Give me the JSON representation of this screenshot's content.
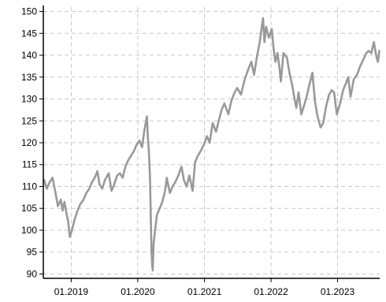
{
  "chart_data": {
    "type": "line",
    "title": "",
    "xlabel": "",
    "ylabel": "",
    "x_range": [
      "2018-08-01",
      "2023-08-20"
    ],
    "ylim": [
      89,
      151
    ],
    "grid": true,
    "grid_style": "dashed",
    "legend": "none",
    "x_ticks": [
      {
        "date": "2019-01-01",
        "label": "01.2019"
      },
      {
        "date": "2020-01-01",
        "label": "01.2020"
      },
      {
        "date": "2021-01-01",
        "label": "01.2021"
      },
      {
        "date": "2022-01-01",
        "label": "01.2022"
      },
      {
        "date": "2023-01-01",
        "label": "01.2023"
      }
    ],
    "y_ticks": [
      {
        "value": 90,
        "label": "90"
      },
      {
        "value": 95,
        "label": "95"
      },
      {
        "value": 100,
        "label": "100"
      },
      {
        "value": 105,
        "label": "105"
      },
      {
        "value": 110,
        "label": "110"
      },
      {
        "value": 115,
        "label": "115"
      },
      {
        "value": 120,
        "label": "120"
      },
      {
        "value": 125,
        "label": "125"
      },
      {
        "value": 130,
        "label": "130"
      },
      {
        "value": 135,
        "label": "135"
      },
      {
        "value": 140,
        "label": "140"
      },
      {
        "value": 145,
        "label": "145"
      },
      {
        "value": 150,
        "label": "150"
      }
    ],
    "series": [
      {
        "color": "#999999",
        "points": [
          [
            "2018-08-05",
            111.5
          ],
          [
            "2018-08-20",
            109.5
          ],
          [
            "2018-09-05",
            111.0
          ],
          [
            "2018-09-20",
            112.0
          ],
          [
            "2018-10-05",
            109.0
          ],
          [
            "2018-10-20",
            105.5
          ],
          [
            "2018-11-05",
            107.0
          ],
          [
            "2018-11-15",
            104.5
          ],
          [
            "2018-11-25",
            106.5
          ],
          [
            "2018-12-05",
            104.0
          ],
          [
            "2018-12-15",
            102.0
          ],
          [
            "2018-12-24",
            98.5
          ],
          [
            "2019-01-05",
            100.0
          ],
          [
            "2019-01-20",
            102.5
          ],
          [
            "2019-02-05",
            104.5
          ],
          [
            "2019-02-20",
            106.0
          ],
          [
            "2019-03-10",
            107.0
          ],
          [
            "2019-03-25",
            108.5
          ],
          [
            "2019-04-10",
            109.5
          ],
          [
            "2019-04-25",
            111.0
          ],
          [
            "2019-05-10",
            112.0
          ],
          [
            "2019-05-25",
            113.5
          ],
          [
            "2019-06-05",
            110.5
          ],
          [
            "2019-06-20",
            109.5
          ],
          [
            "2019-07-05",
            111.5
          ],
          [
            "2019-07-25",
            113.0
          ],
          [
            "2019-08-10",
            109.0
          ],
          [
            "2019-08-25",
            110.5
          ],
          [
            "2019-09-10",
            112.5
          ],
          [
            "2019-09-25",
            113.0
          ],
          [
            "2019-10-10",
            112.0
          ],
          [
            "2019-10-25",
            114.5
          ],
          [
            "2019-11-10",
            116.0
          ],
          [
            "2019-11-25",
            117.0
          ],
          [
            "2019-12-10",
            118.0
          ],
          [
            "2019-12-25",
            119.5
          ],
          [
            "2020-01-10",
            120.5
          ],
          [
            "2020-01-25",
            119.0
          ],
          [
            "2020-02-05",
            122.5
          ],
          [
            "2020-02-20",
            126.0
          ],
          [
            "2020-02-26",
            121.0
          ],
          [
            "2020-03-02",
            118.0
          ],
          [
            "2020-03-08",
            112.0
          ],
          [
            "2020-03-12",
            104.0
          ],
          [
            "2020-03-16",
            96.0
          ],
          [
            "2020-03-20",
            92.0
          ],
          [
            "2020-03-23",
            90.8
          ],
          [
            "2020-03-28",
            97.0
          ],
          [
            "2020-04-05",
            100.0
          ],
          [
            "2020-04-15",
            103.5
          ],
          [
            "2020-04-30",
            105.0
          ],
          [
            "2020-05-15",
            106.5
          ],
          [
            "2020-05-30",
            109.0
          ],
          [
            "2020-06-08",
            112.0
          ],
          [
            "2020-06-25",
            108.5
          ],
          [
            "2020-07-10",
            110.0
          ],
          [
            "2020-07-25",
            111.0
          ],
          [
            "2020-08-10",
            112.5
          ],
          [
            "2020-08-28",
            114.5
          ],
          [
            "2020-09-10",
            111.5
          ],
          [
            "2020-09-25",
            110.0
          ],
          [
            "2020-10-10",
            112.5
          ],
          [
            "2020-10-28",
            109.0
          ],
          [
            "2020-11-10",
            115.5
          ],
          [
            "2020-11-25",
            117.0
          ],
          [
            "2020-12-10",
            118.0
          ],
          [
            "2020-12-28",
            119.5
          ],
          [
            "2021-01-15",
            121.5
          ],
          [
            "2021-01-29",
            120.0
          ],
          [
            "2021-02-15",
            124.5
          ],
          [
            "2021-03-05",
            122.5
          ],
          [
            "2021-03-20",
            125.0
          ],
          [
            "2021-04-05",
            127.5
          ],
          [
            "2021-04-20",
            129.0
          ],
          [
            "2021-05-12",
            126.5
          ],
          [
            "2021-05-28",
            129.5
          ],
          [
            "2021-06-15",
            131.5
          ],
          [
            "2021-06-30",
            132.5
          ],
          [
            "2021-07-20",
            131.0
          ],
          [
            "2021-08-10",
            134.5
          ],
          [
            "2021-08-31",
            137.0
          ],
          [
            "2021-09-15",
            138.5
          ],
          [
            "2021-09-30",
            135.5
          ],
          [
            "2021-10-15",
            139.5
          ],
          [
            "2021-10-31",
            143.0
          ],
          [
            "2021-11-10",
            146.0
          ],
          [
            "2021-11-18",
            148.5
          ],
          [
            "2021-11-26",
            143.0
          ],
          [
            "2021-12-05",
            146.5
          ],
          [
            "2021-12-20",
            144.0
          ],
          [
            "2022-01-05",
            146.0
          ],
          [
            "2022-01-15",
            141.5
          ],
          [
            "2022-01-25",
            138.5
          ],
          [
            "2022-02-05",
            140.5
          ],
          [
            "2022-02-15",
            137.5
          ],
          [
            "2022-02-24",
            134.0
          ],
          [
            "2022-03-10",
            140.5
          ],
          [
            "2022-03-29",
            139.5
          ],
          [
            "2022-04-12",
            136.0
          ],
          [
            "2022-04-28",
            133.0
          ],
          [
            "2022-05-10",
            130.0
          ],
          [
            "2022-05-20",
            128.0
          ],
          [
            "2022-06-01",
            131.5
          ],
          [
            "2022-06-16",
            126.5
          ],
          [
            "2022-07-01",
            128.5
          ],
          [
            "2022-07-15",
            130.5
          ],
          [
            "2022-07-29",
            133.0
          ],
          [
            "2022-08-16",
            136.0
          ],
          [
            "2022-08-30",
            129.5
          ],
          [
            "2022-09-13",
            126.0
          ],
          [
            "2022-09-30",
            123.5
          ],
          [
            "2022-10-14",
            124.5
          ],
          [
            "2022-10-31",
            128.5
          ],
          [
            "2022-11-15",
            131.0
          ],
          [
            "2022-11-30",
            132.0
          ],
          [
            "2022-12-13",
            131.5
          ],
          [
            "2022-12-28",
            126.5
          ],
          [
            "2023-01-15",
            129.0
          ],
          [
            "2023-01-31",
            132.0
          ],
          [
            "2023-02-15",
            133.5
          ],
          [
            "2023-02-28",
            135.0
          ],
          [
            "2023-03-13",
            130.5
          ],
          [
            "2023-03-31",
            134.5
          ],
          [
            "2023-04-17",
            135.5
          ],
          [
            "2023-05-05",
            137.5
          ],
          [
            "2023-05-22",
            139.0
          ],
          [
            "2023-06-08",
            140.5
          ],
          [
            "2023-06-20",
            141.0
          ],
          [
            "2023-07-05",
            140.5
          ],
          [
            "2023-07-19",
            143.0
          ],
          [
            "2023-07-31",
            140.0
          ],
          [
            "2023-08-10",
            138.5
          ],
          [
            "2023-08-18",
            141.0
          ]
        ]
      }
    ]
  }
}
